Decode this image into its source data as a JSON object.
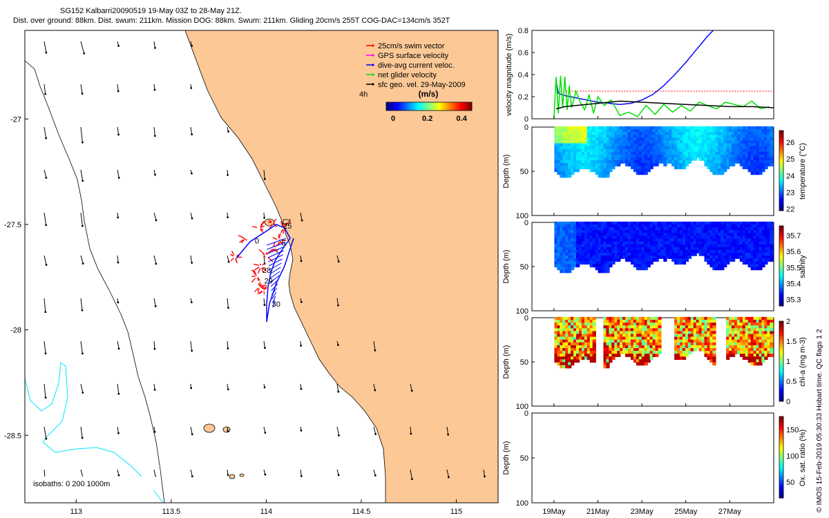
{
  "header": {
    "title_line1": "SG152 Kalbarri20090519 19-May 03Z to 28-May 21Z.",
    "title_line2": "Dist. over ground: 88km. Dist. swum: 211km. Mission DOG: 88km. Swum: 211km. Gliding 20cm/s 255T COG-DAC=134cm/s 352T"
  },
  "credit": "© IMOS 15-Feb-2019 05:30:33 Hobart time. QC flags 1  2",
  "colors": {
    "land": "#fbc896",
    "coastline": "#000000",
    "isobath_200": "#000000",
    "isobath_1000": "#00e5ff",
    "swim_vector": "#ff0000",
    "gps_velocity": "#ff00ff",
    "dac": "#0000ff",
    "net_velocity": "#00e000",
    "sfc_geo": "#000000"
  },
  "chart_data": [
    {
      "type": "map",
      "name": "track map",
      "x_ticks": [
        "113",
        "113.5",
        "114",
        "114.5",
        "115"
      ],
      "y_ticks": [
        "-27",
        "-27.5",
        "-28",
        "-28.5"
      ],
      "xlim": [
        112.73,
        115.22
      ],
      "ylim": [
        -28.82,
        -26.58
      ],
      "legend": [
        {
          "label": "25cm/s swim vector",
          "color": "#ff0000"
        },
        {
          "label": "GPS surface velocity",
          "color": "#ff00ff"
        },
        {
          "label": "dive-avg current veloc.",
          "color": "#0000ff"
        },
        {
          "label": "net glider velocity",
          "color": "#00e000"
        },
        {
          "label": "sfc geo. vel. 29-May-2009",
          "color": "#000000"
        }
      ],
      "vector_timestep": "4h",
      "colorbar": {
        "label": "(m/s)",
        "ticks": [
          "0",
          "0.2",
          "0.4"
        ],
        "range": [
          0,
          0.5
        ]
      },
      "isobaths_label": "isobaths: 0   200  1000m",
      "day_labels": [
        {
          "text": "25",
          "lon": 114.09,
          "lat": -27.52
        },
        {
          "text": "0",
          "lon": 113.94,
          "lat": -27.59
        },
        {
          "text": "6",
          "lon": 114.08,
          "lat": -27.6
        },
        {
          "text": "28",
          "lon": 113.98,
          "lat": -27.73
        },
        {
          "text": "29",
          "lon": 113.99,
          "lat": -27.78
        },
        {
          "text": "30",
          "lon": 114.03,
          "lat": -27.89
        }
      ]
    },
    {
      "type": "line",
      "name": "velocity magnitude",
      "ylabel": "velocity magnitude (m/s)",
      "ylim": [
        0,
        0.8
      ],
      "y_ticks": [
        "0",
        "0.2",
        "0.4",
        "0.6",
        "0.8"
      ],
      "xlim": [
        18.0,
        29.0
      ],
      "series": [
        {
          "color": "#0000ff",
          "x": [
            19.1,
            19.2,
            19.5,
            20.0,
            20.5,
            21.0,
            21.5,
            22.0,
            22.5,
            23.0,
            23.5,
            24.0,
            24.5,
            25.0,
            25.5,
            26.0,
            26.3
          ],
          "y": [
            0.34,
            0.23,
            0.21,
            0.19,
            0.17,
            0.15,
            0.14,
            0.13,
            0.14,
            0.17,
            0.22,
            0.3,
            0.4,
            0.51,
            0.63,
            0.75,
            0.81
          ]
        },
        {
          "color": "#ff0000",
          "x": [
            19.3,
            29.0
          ],
          "y": [
            0.25,
            0.25
          ]
        },
        {
          "color": "#00e000",
          "x": [
            19.0,
            19.1,
            19.2,
            19.3,
            19.4,
            19.5,
            19.6,
            19.7,
            19.8,
            20.0,
            20.2,
            20.4,
            20.6,
            20.8,
            21.0,
            21.3,
            21.6,
            22.0,
            22.4,
            22.8,
            23.2,
            23.6,
            24.0,
            24.4,
            24.8,
            25.2,
            25.6,
            26.0,
            26.4,
            26.8,
            27.2,
            27.6,
            28.0,
            28.4,
            28.8
          ],
          "y": [
            0.0,
            0.38,
            0.05,
            0.39,
            0.1,
            0.38,
            0.08,
            0.3,
            0.1,
            0.25,
            0.15,
            0.08,
            0.22,
            0.05,
            0.2,
            0.12,
            0.17,
            0.03,
            0.06,
            0.02,
            0.12,
            0.04,
            0.13,
            0.06,
            0.12,
            0.07,
            0.15,
            0.12,
            0.09,
            0.15,
            0.13,
            0.11,
            0.16,
            0.09,
            0.11
          ]
        },
        {
          "color": "#000000",
          "x": [
            19.1,
            19.5,
            20.0,
            21.0,
            22.0,
            23.0,
            24.0,
            25.0,
            26.0,
            27.0,
            28.0,
            29.0
          ],
          "y": [
            0.09,
            0.11,
            0.12,
            0.14,
            0.16,
            0.15,
            0.14,
            0.13,
            0.12,
            0.11,
            0.11,
            0.1
          ]
        }
      ]
    },
    {
      "type": "heatmap",
      "name": "temperature section",
      "ylabel": "Depth (m)",
      "y_ticks": [
        "0",
        "50",
        "100"
      ],
      "ylim": [
        100,
        0
      ],
      "colorbar": {
        "label": "temperature (°C)",
        "ticks": [
          "22",
          "23",
          "24",
          "25",
          "26"
        ],
        "range": [
          21.9,
          26.7
        ]
      }
    },
    {
      "type": "heatmap",
      "name": "salinity section",
      "ylabel": "Depth (m)",
      "y_ticks": [
        "0",
        "50",
        "100"
      ],
      "ylim": [
        100,
        0
      ],
      "colorbar": {
        "label": "salinity",
        "ticks": [
          "35.3",
          "35.4",
          "35.5",
          "35.6",
          "35.7"
        ],
        "range": [
          35.26,
          35.76
        ]
      }
    },
    {
      "type": "heatmap",
      "name": "chlorophyll section",
      "ylabel": "Depth (m)",
      "y_ticks": [
        "0",
        "50",
        "100"
      ],
      "ylim": [
        100,
        0
      ],
      "colorbar": {
        "label": "chl-a (mg m-3)",
        "ticks": [
          "0",
          "0.5",
          "1",
          "1.5",
          "2"
        ],
        "range": [
          0,
          2
        ]
      }
    },
    {
      "type": "heatmap",
      "name": "oxygen section",
      "ylabel": "Depth (m)",
      "y_ticks": [
        "0",
        "50",
        "100"
      ],
      "ylim": [
        100,
        0
      ],
      "x_ticks": [
        "19May",
        "21May",
        "23May",
        "25May",
        "27May"
      ],
      "colorbar": {
        "label": "Ox. sat. ratio (%)",
        "ticks": [
          "50",
          "100",
          "150"
        ],
        "range": [
          20,
          175
        ]
      }
    }
  ]
}
